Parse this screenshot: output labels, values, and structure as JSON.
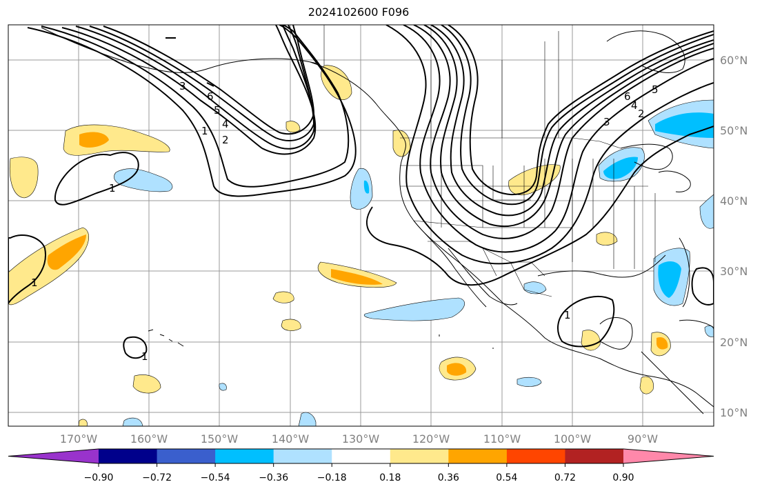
{
  "title": "2024102600 F096",
  "lat_labels": [
    "60°N",
    "50°N",
    "40°N",
    "30°N",
    "20°N",
    "10°N"
  ],
  "lon_labels": [
    "170°W",
    "160°W",
    "150°W",
    "140°W",
    "130°W",
    "120°W",
    "110°W",
    "100°W",
    "90°W"
  ],
  "colorbar": {
    "tick_labels": [
      "−0.90",
      "−0.72",
      "−0.54",
      "−0.36",
      "−0.18",
      "0.18",
      "0.36",
      "0.54",
      "0.72",
      "0.90"
    ],
    "colors": [
      "#9933cc",
      "#00008b",
      "#3a5fcd",
      "#00bfff",
      "#afe1ff",
      "#ffffff",
      "#ffe98c",
      "#ffa500",
      "#ff4500",
      "#b22222",
      "#ff88aa"
    ]
  },
  "contour_labels": [
    "1",
    "2",
    "3",
    "4",
    "5",
    "6"
  ]
}
